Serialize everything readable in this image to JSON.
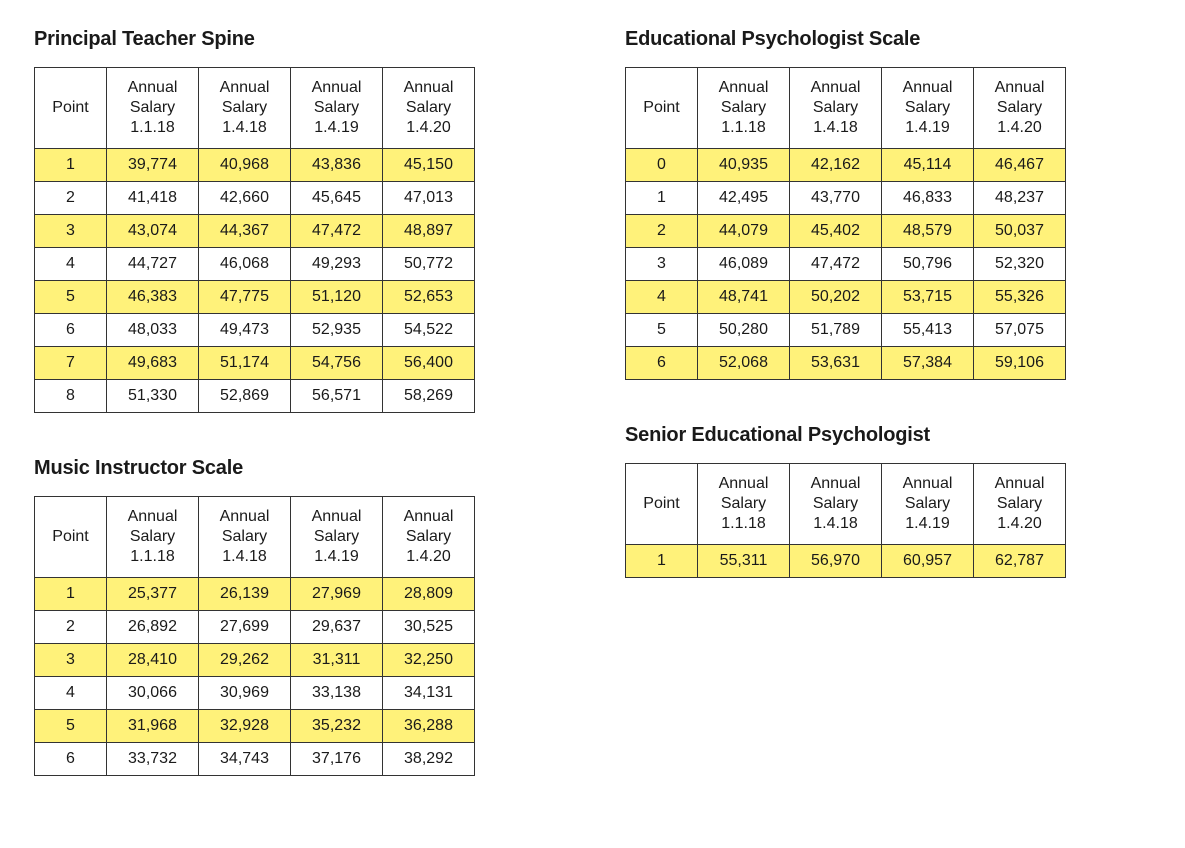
{
  "highlight_color": "#fff27a",
  "border_color": "#333333",
  "font_family": "Trebuchet MS",
  "title_fontsize": 20,
  "cell_fontsize": 16,
  "columns_header": [
    "Point",
    "Annual Salary 1.1.18",
    "Annual Salary 1.4.18",
    "Annual Salary 1.4.19",
    "Annual Salary 1.4.20"
  ],
  "tables": [
    {
      "key": "principal",
      "title": "Principal Teacher Spine",
      "column": "left",
      "rows": [
        {
          "point": "1",
          "values": [
            "39,774",
            "40,968",
            "43,836",
            "45,150"
          ],
          "highlight": true
        },
        {
          "point": "2",
          "values": [
            "41,418",
            "42,660",
            "45,645",
            "47,013"
          ],
          "highlight": false
        },
        {
          "point": "3",
          "values": [
            "43,074",
            "44,367",
            "47,472",
            "48,897"
          ],
          "highlight": true
        },
        {
          "point": "4",
          "values": [
            "44,727",
            "46,068",
            "49,293",
            "50,772"
          ],
          "highlight": false
        },
        {
          "point": "5",
          "values": [
            "46,383",
            "47,775",
            "51,120",
            "52,653"
          ],
          "highlight": true
        },
        {
          "point": "6",
          "values": [
            "48,033",
            "49,473",
            "52,935",
            "54,522"
          ],
          "highlight": false
        },
        {
          "point": "7",
          "values": [
            "49,683",
            "51,174",
            "54,756",
            "56,400"
          ],
          "highlight": true
        },
        {
          "point": "8",
          "values": [
            "51,330",
            "52,869",
            "56,571",
            "58,269"
          ],
          "highlight": false
        }
      ]
    },
    {
      "key": "music",
      "title": "Music Instructor Scale",
      "column": "left",
      "rows": [
        {
          "point": "1",
          "values": [
            "25,377",
            "26,139",
            "27,969",
            "28,809"
          ],
          "highlight": true
        },
        {
          "point": "2",
          "values": [
            "26,892",
            "27,699",
            "29,637",
            "30,525"
          ],
          "highlight": false
        },
        {
          "point": "3",
          "values": [
            "28,410",
            "29,262",
            "31,311",
            "32,250"
          ],
          "highlight": true
        },
        {
          "point": "4",
          "values": [
            "30,066",
            "30,969",
            "33,138",
            "34,131"
          ],
          "highlight": false
        },
        {
          "point": "5",
          "values": [
            "31,968",
            "32,928",
            "35,232",
            "36,288"
          ],
          "highlight": true
        },
        {
          "point": "6",
          "values": [
            "33,732",
            "34,743",
            "37,176",
            "38,292"
          ],
          "highlight": false
        }
      ]
    },
    {
      "key": "edpsych",
      "title": "Educational Psychologist Scale",
      "column": "right",
      "rows": [
        {
          "point": "0",
          "values": [
            "40,935",
            "42,162",
            "45,114",
            "46,467"
          ],
          "highlight": true
        },
        {
          "point": "1",
          "values": [
            "42,495",
            "43,770",
            "46,833",
            "48,237"
          ],
          "highlight": false
        },
        {
          "point": "2",
          "values": [
            "44,079",
            "45,402",
            "48,579",
            "50,037"
          ],
          "highlight": true
        },
        {
          "point": "3",
          "values": [
            "46,089",
            "47,472",
            "50,796",
            "52,320"
          ],
          "highlight": false
        },
        {
          "point": "4",
          "values": [
            "48,741",
            "50,202",
            "53,715",
            "55,326"
          ],
          "highlight": true
        },
        {
          "point": "5",
          "values": [
            "50,280",
            "51,789",
            "55,413",
            "57,075"
          ],
          "highlight": false
        },
        {
          "point": "6",
          "values": [
            "52,068",
            "53,631",
            "57,384",
            "59,106"
          ],
          "highlight": true
        }
      ]
    },
    {
      "key": "senioredpsych",
      "title": "Senior Educational Psychologist",
      "column": "right",
      "rows": [
        {
          "point": "1",
          "values": [
            "55,311",
            "56,970",
            "60,957",
            "62,787"
          ],
          "highlight": true
        }
      ]
    }
  ]
}
